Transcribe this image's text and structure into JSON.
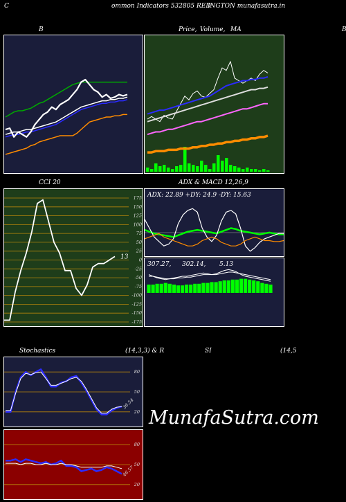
{
  "header": {
    "left": "ommon  Indicators 532805 RED",
    "right": "INGTON  munafasutra.in",
    "c": "C"
  },
  "titles": {
    "bb": "B",
    "price": "Price,",
    "volume": "Volume,",
    "ma": "MA",
    "far_right": "B",
    "cci": "CCI 20",
    "adx_macd": "ADX  & MACD 12,26,9",
    "stoch": "Stochastics",
    "stoch_params": "(14,3,3) & R",
    "si": "SI",
    "rsi_params": "(14,5"
  },
  "watermark": "MunafaSutra.com",
  "colors": {
    "bb_bg": "#1a1d3a",
    "price_bg": "#1e3d1a",
    "cci_bg": "#1e3d1a",
    "adx_bg": "#1a1d3a",
    "stoch_bg": "#1a1d3a",
    "rsi_bg": "#8b0000",
    "green": "#00ff00",
    "blue": "#0000ff",
    "orange": "#ff8c00"
  },
  "chart_data": [
    {
      "id": "bollinger",
      "type": "line",
      "ylim": [
        0,
        100
      ],
      "series": [
        {
          "key": "upper",
          "color": "#00aa00",
          "values": [
            40,
            42,
            44,
            45,
            45,
            46,
            47,
            49,
            51,
            52,
            54,
            56,
            58,
            60,
            62,
            64,
            66,
            67,
            68,
            68,
            68,
            68,
            68,
            68,
            68,
            68,
            68,
            68,
            68,
            68
          ]
        },
        {
          "key": "middle_a",
          "color": "#2b2bff",
          "values": [
            24,
            25,
            26,
            26,
            27,
            28,
            28,
            29,
            30,
            31,
            32,
            33,
            34,
            36,
            38,
            40,
            42,
            44,
            46,
            47,
            48,
            49,
            50,
            51,
            51,
            52,
            52,
            53,
            53,
            54
          ]
        },
        {
          "key": "middle_b",
          "color": "#ffffff",
          "values": [
            26,
            27,
            28,
            28,
            29,
            30,
            30,
            31,
            32,
            33,
            34,
            35,
            36,
            38,
            40,
            42,
            44,
            46,
            48,
            49,
            50,
            51,
            52,
            53,
            53,
            54,
            54,
            55,
            55,
            56
          ]
        },
        {
          "key": "lower",
          "color": "#ff8c00",
          "values": [
            10,
            11,
            12,
            13,
            14,
            15,
            17,
            18,
            20,
            21,
            22,
            23,
            24,
            25,
            25,
            25,
            25,
            27,
            30,
            33,
            36,
            37,
            38,
            39,
            40,
            40,
            41,
            41,
            42,
            42
          ]
        },
        {
          "key": "price",
          "color": "#ffffff",
          "values": [
            30,
            31,
            24,
            28,
            26,
            24,
            28,
            34,
            38,
            42,
            44,
            48,
            46,
            50,
            52,
            54,
            58,
            62,
            68,
            70,
            66,
            62,
            60,
            56,
            58,
            55,
            56,
            58,
            57,
            58
          ]
        }
      ]
    },
    {
      "id": "price_volume_ma",
      "type": "line",
      "ylim": [
        0,
        100
      ],
      "series": [
        {
          "key": "price",
          "color": "#ffffff",
          "values": [
            40,
            42,
            40,
            38,
            43,
            41,
            40,
            46,
            52,
            58,
            55,
            60,
            62,
            58,
            57,
            60,
            63,
            72,
            80,
            78,
            85,
            72,
            70,
            68,
            70,
            72,
            70,
            75,
            78,
            76
          ]
        },
        {
          "key": "ma_short",
          "color": "#2b2bff",
          "values": [
            44,
            45,
            46,
            47,
            47,
            48,
            49,
            50,
            51,
            52,
            53,
            54,
            55,
            56,
            57,
            58,
            60,
            62,
            64,
            66,
            67,
            68,
            69,
            70,
            70,
            71,
            71,
            72,
            72,
            73
          ]
        },
        {
          "key": "ma_mid",
          "color": "#dddddd",
          "values": [
            38,
            39,
            40,
            41,
            42,
            43,
            44,
            45,
            46,
            47,
            48,
            49,
            50,
            51,
            52,
            53,
            54,
            55,
            56,
            57,
            58,
            59,
            60,
            61,
            62,
            63,
            63,
            64,
            64,
            65
          ]
        },
        {
          "key": "ma_pink",
          "color": "#ff66ff",
          "values": [
            28,
            29,
            30,
            30,
            31,
            32,
            32,
            33,
            34,
            35,
            36,
            37,
            38,
            38,
            39,
            40,
            41,
            42,
            43,
            44,
            45,
            46,
            47,
            48,
            48,
            49,
            50,
            51,
            52,
            52
          ]
        },
        {
          "key": "ma_orange",
          "color": "#ff8c00",
          "values": [
            14,
            14,
            15,
            15,
            15,
            16,
            16,
            16,
            17,
            17,
            17,
            18,
            18,
            19,
            19,
            20,
            20,
            21,
            21,
            22,
            22,
            23,
            23,
            24,
            24,
            25,
            25,
            26,
            26,
            27
          ]
        }
      ],
      "volume": [
        3,
        2,
        6,
        4,
        5,
        3,
        2,
        4,
        5,
        18,
        6,
        5,
        4,
        8,
        5,
        2,
        6,
        12,
        8,
        10,
        5,
        4,
        3,
        2,
        3,
        2,
        2,
        1,
        2,
        1
      ]
    },
    {
      "id": "cci",
      "type": "line",
      "ylim": [
        -175,
        175
      ],
      "ticks": [
        175,
        150,
        125,
        100,
        75,
        50,
        25,
        0,
        -25,
        -50,
        -75,
        -100,
        -125,
        -150,
        -175
      ],
      "tick_labels": [
        "175",
        "150",
        "125",
        "100",
        "75",
        "50",
        "25",
        "0",
        "-25",
        "-50",
        "-75",
        "-100",
        "-125",
        "-150",
        "-175"
      ],
      "value_label": "13",
      "values": [
        -170,
        -170,
        -90,
        -30,
        20,
        80,
        160,
        170,
        110,
        50,
        20,
        -30,
        -30,
        -80,
        -100,
        -70,
        -20,
        -10,
        -10,
        0,
        10
      ]
    },
    {
      "id": "adx",
      "type": "line",
      "caption": "ADX: 22.89  +DY: 24.9  -DY: 15.63",
      "ylim": [
        0,
        60
      ],
      "series": [
        {
          "key": "adx",
          "color": "#00ff00",
          "values": [
            28,
            26,
            24,
            23,
            22,
            21,
            20,
            22,
            24,
            26,
            27,
            28,
            27,
            26,
            25,
            24,
            26,
            28,
            30,
            29,
            27,
            26,
            25,
            24,
            23,
            24,
            25,
            24,
            23,
            23
          ]
        },
        {
          "key": "plus_dy",
          "color": "#ffffff",
          "values": [
            40,
            30,
            20,
            15,
            10,
            12,
            18,
            35,
            45,
            50,
            52,
            48,
            30,
            20,
            15,
            22,
            38,
            48,
            50,
            46,
            30,
            10,
            4,
            8,
            14,
            18,
            20,
            22,
            24,
            24
          ]
        },
        {
          "key": "minus_dy",
          "color": "#ff8c00",
          "values": [
            18,
            20,
            22,
            24,
            20,
            18,
            16,
            14,
            12,
            10,
            10,
            12,
            16,
            18,
            20,
            18,
            14,
            12,
            10,
            10,
            12,
            16,
            18,
            20,
            18,
            16,
            16,
            15,
            15,
            16
          ]
        }
      ]
    },
    {
      "id": "macd",
      "type": "bar",
      "caption_values": [
        "307.27,",
        "302.14,",
        "5.13"
      ],
      "ylim": [
        0,
        30
      ],
      "histogram": [
        10,
        10,
        11,
        11,
        12,
        11,
        10,
        9,
        9,
        10,
        10,
        11,
        11,
        12,
        12,
        13,
        13,
        14,
        15,
        15,
        16,
        16,
        17,
        17,
        16,
        15,
        14,
        12,
        11,
        10
      ],
      "series": [
        {
          "key": "macd",
          "color": "#ffffff",
          "values": [
            22,
            20,
            18,
            17,
            16,
            17,
            18,
            19,
            20,
            20,
            21,
            22,
            23,
            24,
            23,
            22,
            23,
            25,
            27,
            28,
            27,
            25,
            22,
            20,
            19,
            18,
            17,
            16,
            15,
            14
          ]
        },
        {
          "key": "signal",
          "color": "#ffffff",
          "values": [
            20,
            20,
            19,
            18,
            17,
            17,
            17,
            18,
            18,
            19,
            19,
            20,
            21,
            22,
            22,
            22,
            22,
            23,
            24,
            25,
            25,
            24,
            23,
            22,
            21,
            20,
            19,
            18,
            17,
            16
          ]
        }
      ]
    },
    {
      "id": "stochastics",
      "type": "line",
      "ylim": [
        0,
        100
      ],
      "ticks": [
        80,
        50,
        20
      ],
      "tick_labels": [
        "80",
        "50",
        "20"
      ],
      "value_label": "36.54",
      "series": [
        {
          "key": "k",
          "color": "#2b2bff",
          "values": [
            20,
            20,
            50,
            72,
            80,
            75,
            80,
            84,
            72,
            58,
            58,
            64,
            66,
            72,
            74,
            64,
            52,
            38,
            24,
            16,
            16,
            22,
            26,
            28
          ]
        },
        {
          "key": "d",
          "color": "#ffffff",
          "values": [
            22,
            22,
            48,
            70,
            78,
            76,
            79,
            80,
            70,
            60,
            60,
            63,
            66,
            70,
            72,
            66,
            54,
            40,
            26,
            18,
            18,
            24,
            27,
            28
          ]
        }
      ]
    },
    {
      "id": "rsi",
      "type": "line",
      "ylim": [
        0,
        100
      ],
      "ticks": [
        80,
        50,
        20
      ],
      "tick_labels": [
        "80",
        "50",
        "20"
      ],
      "value_label": "46.57",
      "series": [
        {
          "key": "rsi_blue",
          "color": "#2b2bff",
          "values": [
            56,
            56,
            58,
            54,
            58,
            56,
            54,
            52,
            54,
            50,
            52,
            56,
            48,
            48,
            46,
            40,
            42,
            44,
            40,
            42,
            46,
            44,
            40,
            36
          ]
        },
        {
          "key": "rsi_white",
          "color": "#ffffff",
          "values": [
            52,
            52,
            52,
            50,
            52,
            52,
            50,
            50,
            52,
            50,
            50,
            52,
            50,
            50,
            48,
            46,
            46,
            46,
            46,
            46,
            48,
            48,
            46,
            44
          ]
        }
      ]
    }
  ]
}
